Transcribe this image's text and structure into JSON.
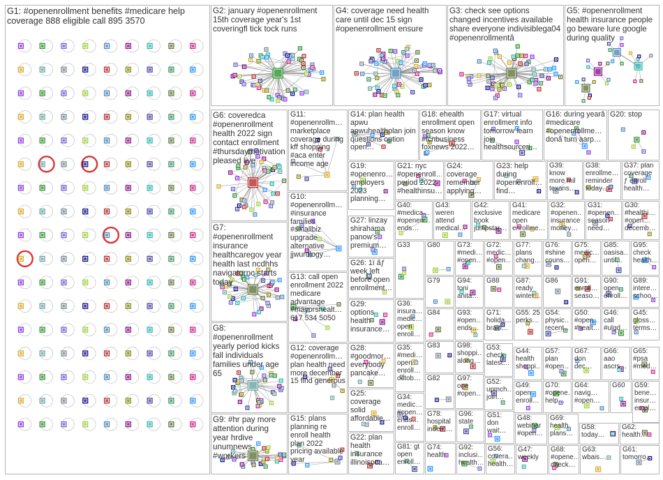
{
  "graph": {
    "groups": [
      {
        "id": "G1",
        "label": "G1: #openenrollment benefits #medicare help coverage 888 eligible call 895 3570"
      },
      {
        "id": "G2",
        "label": "G2: january #openenrollment 15th coverage year's 1st coveringfl tick tock runs"
      },
      {
        "id": "G4",
        "label": "G4: coverage need health care until dec 15 sign #openenrollment ensure"
      },
      {
        "id": "G3",
        "label": "G3: check see options changed incentives available share everyone indivisiblega04 #openenrollmentâ"
      },
      {
        "id": "G5",
        "label": "G5: #openenrollment health insurance people go beware lure google during quality"
      },
      {
        "id": "G6",
        "label": "G6: coveredca #openenrollment health 2022 sign contact enrollment #thursdaymotivation pleased live"
      },
      {
        "id": "G11",
        "label": "G11: #openenrollm… marketplace coverage during kff shopping #aca enter income age"
      },
      {
        "id": "G14",
        "label": "G14: plan health apwu apwuhealthplan join questions option open…"
      },
      {
        "id": "G18",
        "label": "G18: ehealth enrollment open season know #fcnbusiness foxnews 2022…"
      },
      {
        "id": "G17",
        "label": "G17: virtual enrollment info tomorrow learn join healthsourceri…"
      },
      {
        "id": "G16",
        "label": "G16: during yearâ #medicare #openenrollme… donâ turn aarp…"
      },
      {
        "id": "G20",
        "label": "G20: stop"
      },
      {
        "id": "G19",
        "label": "G19: #openenro… employers 2023 planning…"
      },
      {
        "id": "G21",
        "label": "G21: nyc #openenroll… period 2022 #healthinsu…"
      },
      {
        "id": "G24",
        "label": "G24: coverage remember applying…"
      },
      {
        "id": "G23",
        "label": "G23: help during #openenroll… find…"
      },
      {
        "id": "G39",
        "label": "G39: know more mil texans…"
      },
      {
        "id": "G38",
        "label": "G38: enrollme… reminder today…"
      },
      {
        "id": "G37",
        "label": "G37: plan coverage ƒ enroll health…"
      },
      {
        "id": "G10",
        "label": "G10: #openenrollm… #insurance families #smallbiz upgrade alternative jjwurology…"
      },
      {
        "id": "G40",
        "label": "G40: #medica… #openen… ends…"
      },
      {
        "id": "G43",
        "label": "G43: weren attend medical…"
      },
      {
        "id": "G42",
        "label": "G42: exclusive book jumpstar…"
      },
      {
        "id": "G41",
        "label": "G41: medicare open enrollme…"
      },
      {
        "id": "G32",
        "label": "G32: #openen… insurance money…"
      },
      {
        "id": "G31",
        "label": "G31: #openen… season need…"
      },
      {
        "id": "G30",
        "label": "G30: #healthi… #open… decemb…"
      },
      {
        "id": "G7",
        "label": "G7: #openenrollment insurance healthcaregov year health last ncdhhs navigatornc starts today"
      },
      {
        "id": "G27",
        "label": "G27: linzay shirahama panow's premium…"
      },
      {
        "id": "G33",
        "label": "G33"
      },
      {
        "id": "G80",
        "label": "G80"
      },
      {
        "id": "G73",
        "label": "G73: #medi… #open…"
      },
      {
        "id": "G72",
        "label": "G72: medic… #open…"
      },
      {
        "id": "G77",
        "label": "G77: plans chang…"
      },
      {
        "id": "G76",
        "label": "G76: #shine couns…"
      },
      {
        "id": "G75",
        "label": "G75: medic… open…"
      },
      {
        "id": "G85",
        "label": "G85: oasisa… until…"
      },
      {
        "id": "G95",
        "label": "G95: check health…"
      },
      {
        "id": "G26",
        "label": "G26: 1ï ẩƒ week left before open enrollment…"
      },
      {
        "id": "G79",
        "label": "G79"
      },
      {
        "id": "G94",
        "label": "G94: toni anita…"
      },
      {
        "id": "G88",
        "label": "G88"
      },
      {
        "id": "G87",
        "label": "G87: ready winter…"
      },
      {
        "id": "G86",
        "label": "G86"
      },
      {
        "id": "G91",
        "label": "G91: enroll… seaso…"
      },
      {
        "id": "G90",
        "label": "G90: open enroll…"
      },
      {
        "id": "G89",
        "label": "G89: intere… schoo…"
      },
      {
        "id": "G13",
        "label": "G13: call open enrollment 2022 medicare advantage #mayorshealt… 617 534 5050"
      },
      {
        "id": "G36",
        "label": "G36: insura… medic… open enroll…"
      },
      {
        "id": "G29",
        "label": "G29: options health insurance…"
      },
      {
        "id": "G84",
        "label": "G84"
      },
      {
        "id": "G93",
        "label": "G93: #open… ends…"
      },
      {
        "id": "G71",
        "label": "G71: holida… brain…"
      },
      {
        "id": "G55",
        "label": "G55: 25 perks…"
      },
      {
        "id": "G54",
        "label": "G54: physic… recent…"
      },
      {
        "id": "G50",
        "label": "G50: #open… #healt…"
      },
      {
        "id": "G46",
        "label": "G46: call #ulgd…"
      },
      {
        "id": "G45",
        "label": "G45: gloss… terms…"
      },
      {
        "id": "G8",
        "label": "G8: #openenrollment yearly period kicks fall individuals families under age 65"
      },
      {
        "id": "G28",
        "label": "G28: #goodmor… everybody pancake…"
      },
      {
        "id": "G35",
        "label": "G35: #medi… open enroll… octob…"
      },
      {
        "id": "G83",
        "label": "G83"
      },
      {
        "id": "G98",
        "label": "G98: shoppi… along…"
      },
      {
        "id": "G53",
        "label": "G53: check latest…"
      },
      {
        "id": "G44",
        "label": "G44: health shoppi…"
      },
      {
        "id": "G57",
        "label": "G57: plan #open…"
      },
      {
        "id": "G67",
        "label": "G67: don dec…"
      },
      {
        "id": "G66",
        "label": "G66: aao ascrs…"
      },
      {
        "id": "G65",
        "label": "G65: #psa #med…"
      },
      {
        "id": "G12",
        "label": "G12: coverage #openenrollm… plan health need more december 15 find generous"
      },
      {
        "id": "G82",
        "label": "G82"
      },
      {
        "id": "G97",
        "label": "G97: one #open…"
      },
      {
        "id": "G52",
        "label": "G52: upmch… join…"
      },
      {
        "id": "G49",
        "label": "G49: open enroll…"
      },
      {
        "id": "G70",
        "label": "G70: #opene… help…"
      },
      {
        "id": "G64",
        "label": "G64: navig… #open…"
      },
      {
        "id": "G60",
        "label": "G60"
      },
      {
        "id": "G59",
        "label": "G59: bene… insur… empl…"
      },
      {
        "id": "G25",
        "label": "G25: coverage solid affordable…"
      },
      {
        "id": "G34",
        "label": "G34: medic… #open… ends… enroll…"
      },
      {
        "id": "G78",
        "label": "G78: hospital indem…"
      },
      {
        "id": "G96",
        "label": "G96: state"
      },
      {
        "id": "G51",
        "label": "G51: don wait…"
      },
      {
        "id": "G48",
        "label": "G48: webinar #open…"
      },
      {
        "id": "G69",
        "label": "G69: health plans…"
      },
      {
        "id": "G58",
        "label": "G58: today…"
      },
      {
        "id": "G62",
        "label": "G62: health…"
      },
      {
        "id": "G9",
        "label": "G9: #hr pay more attention during year hrdive unumnews #workers"
      },
      {
        "id": "G15",
        "label": "G15: plans planning re enroll health plan 2022 pricing available year"
      },
      {
        "id": "G22",
        "label": "G22: plan health insurance illinoispca…"
      },
      {
        "id": "G81",
        "label": "G81: gt open enroll…"
      },
      {
        "id": "G74",
        "label": "G74: health"
      },
      {
        "id": "G92",
        "label": "G92: inclusi… health…"
      },
      {
        "id": "G56",
        "label": "G56: covera… health…"
      },
      {
        "id": "G47",
        "label": "G47: weekly"
      },
      {
        "id": "G68",
        "label": "G68: #opene… check…"
      },
      {
        "id": "G63",
        "label": "G63: wbais…"
      },
      {
        "id": "G61",
        "label": "G61: tomorro…"
      }
    ],
    "colors": {
      "node_palette": [
        "#3b3b98",
        "#2e8b57",
        "#1e90ff",
        "#8a2be2",
        "#228b22",
        "#6a5acd",
        "#9acd32",
        "#4682b4",
        "#800080",
        "#20b2aa",
        "#556b2f",
        "#c71585",
        "#daa520",
        "#5f9ea0",
        "#708090",
        "#000080",
        "#b22222",
        "#808000"
      ],
      "edge": "#8a8a8a",
      "highlight_ring": "#e03030",
      "panel_border": "#b4b4b4",
      "label_text": "#333333"
    }
  }
}
